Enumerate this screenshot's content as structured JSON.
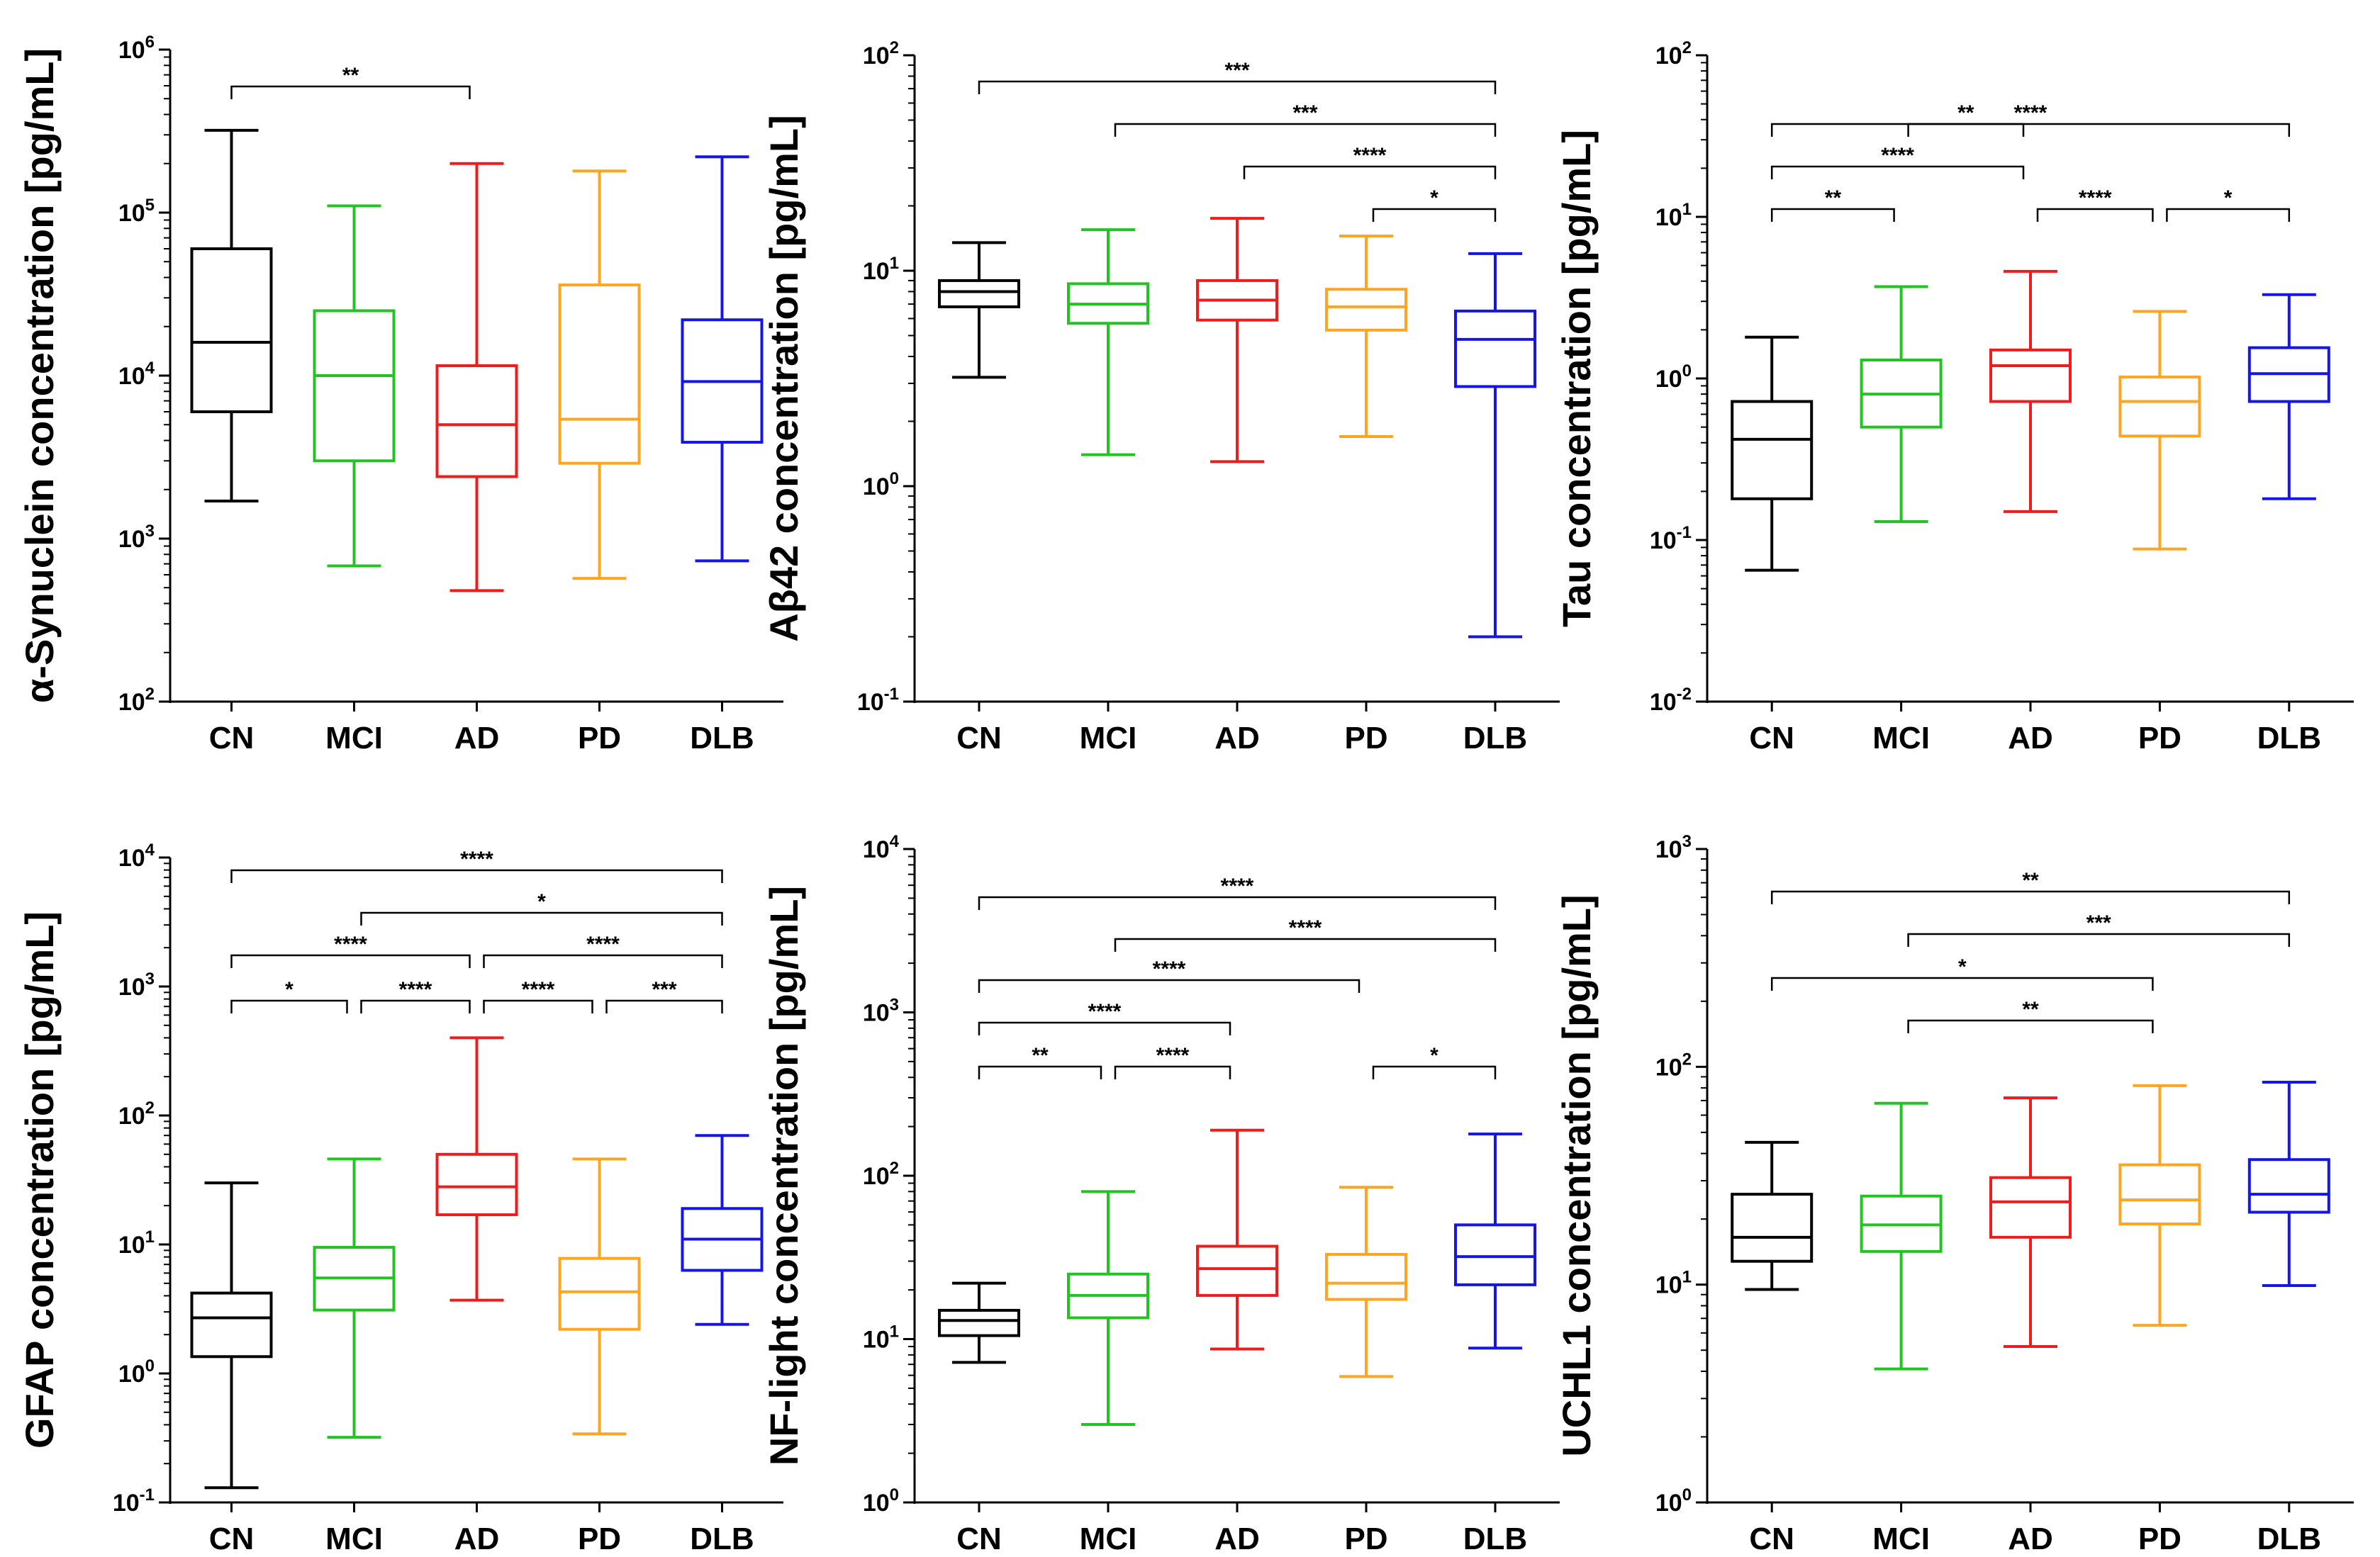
{
  "colors": {
    "CN": "#000000",
    "MCI": "#22c422",
    "AD": "#ee1c1c",
    "PD": "#ffa521",
    "DLB": "#1414ee"
  },
  "chart_data": [
    {
      "type": "box",
      "title": "",
      "xlabel": "",
      "ylabel": "α-Synuclein concentration [pg/mL]",
      "yscale": "log",
      "ylim": [
        100,
        1000000
      ],
      "yticks": [
        {
          "base": "10",
          "exp": "2"
        },
        {
          "base": "10",
          "exp": "3"
        },
        {
          "base": "10",
          "exp": "4"
        },
        {
          "base": "10",
          "exp": "5"
        },
        {
          "base": "10",
          "exp": "6"
        }
      ],
      "categories": [
        "CN",
        "MCI",
        "AD",
        "PD",
        "DLB"
      ],
      "series": [
        {
          "name": "CN",
          "min": 1700,
          "q1": 6000,
          "median": 16000,
          "q3": 60000,
          "max": 320000
        },
        {
          "name": "MCI",
          "min": 680,
          "q1": 3000,
          "median": 10000,
          "q3": 25000,
          "max": 110000
        },
        {
          "name": "AD",
          "min": 480,
          "q1": 2400,
          "median": 5000,
          "q3": 11500,
          "max": 200000
        },
        {
          "name": "PD",
          "min": 570,
          "q1": 2900,
          "median": 5400,
          "q3": 36000,
          "max": 180000
        },
        {
          "name": "DLB",
          "min": 730,
          "q1": 3900,
          "median": 9200,
          "q3": 22000,
          "max": 220000
        }
      ],
      "annotations": [
        {
          "from": "CN",
          "to": "AD",
          "label": "**"
        }
      ]
    },
    {
      "type": "box",
      "title": "",
      "xlabel": "",
      "ylabel": "Aβ42 concentration [pg/mL]",
      "yscale": "log",
      "ylim": [
        0.1,
        100
      ],
      "yticks": [
        {
          "base": "10",
          "exp": "-1"
        },
        {
          "base": "10",
          "exp": "0"
        },
        {
          "base": "10",
          "exp": "1"
        },
        {
          "base": "10",
          "exp": "2"
        }
      ],
      "categories": [
        "CN",
        "MCI",
        "AD",
        "PD",
        "DLB"
      ],
      "series": [
        {
          "name": "CN",
          "min": 3.2,
          "q1": 6.8,
          "median": 8.0,
          "q3": 9.0,
          "max": 13.5
        },
        {
          "name": "MCI",
          "min": 1.4,
          "q1": 5.7,
          "median": 7.0,
          "q3": 8.7,
          "max": 15.5
        },
        {
          "name": "AD",
          "min": 1.3,
          "q1": 5.9,
          "median": 7.3,
          "q3": 9.0,
          "max": 17.5
        },
        {
          "name": "PD",
          "min": 1.7,
          "q1": 5.3,
          "median": 6.8,
          "q3": 8.2,
          "max": 14.5
        },
        {
          "name": "DLB",
          "min": 0.2,
          "q1": 2.9,
          "median": 4.8,
          "q3": 6.5,
          "max": 12.0
        }
      ],
      "annotations": [
        {
          "from": "CN",
          "to": "DLB",
          "label": "***"
        },
        {
          "from": "MCI",
          "to": "DLB",
          "label": "***"
        },
        {
          "from": "AD",
          "to": "DLB",
          "label": "****"
        },
        {
          "from": "PD",
          "to": "DLB",
          "label": "*"
        }
      ]
    },
    {
      "type": "box",
      "title": "",
      "xlabel": "",
      "ylabel": "Tau concentration [pg/mL]",
      "yscale": "log",
      "ylim": [
        0.01,
        100
      ],
      "yticks": [
        {
          "base": "10",
          "exp": "-2"
        },
        {
          "base": "10",
          "exp": "-1"
        },
        {
          "base": "10",
          "exp": "0"
        },
        {
          "base": "10",
          "exp": "1"
        },
        {
          "base": "10",
          "exp": "2"
        }
      ],
      "categories": [
        "CN",
        "MCI",
        "AD",
        "PD",
        "DLB"
      ],
      "series": [
        {
          "name": "CN",
          "min": 0.065,
          "q1": 0.18,
          "median": 0.42,
          "q3": 0.72,
          "max": 1.8
        },
        {
          "name": "MCI",
          "min": 0.13,
          "q1": 0.5,
          "median": 0.8,
          "q3": 1.3,
          "max": 3.7
        },
        {
          "name": "AD",
          "min": 0.15,
          "q1": 0.72,
          "median": 1.2,
          "q3": 1.5,
          "max": 4.6
        },
        {
          "name": "PD",
          "min": 0.088,
          "q1": 0.44,
          "median": 0.72,
          "q3": 1.02,
          "max": 2.6
        },
        {
          "name": "DLB",
          "min": 0.18,
          "q1": 0.72,
          "median": 1.07,
          "q3": 1.55,
          "max": 3.3
        }
      ],
      "annotations": [
        {
          "from": "CN",
          "to": "DLB",
          "label": "****"
        },
        {
          "from": "CN",
          "to": "AD",
          "label": "****"
        },
        {
          "from": "CN",
          "to": "MCI",
          "label": "**"
        },
        {
          "from": "MCI",
          "to": "AD",
          "label": "**"
        },
        {
          "from": "AD",
          "to": "PD",
          "label": "****"
        },
        {
          "from": "PD",
          "to": "DLB",
          "label": "*"
        }
      ]
    },
    {
      "type": "box",
      "title": "",
      "xlabel": "",
      "ylabel": "GFAP concentration [pg/mL]",
      "yscale": "log",
      "ylim": [
        0.1,
        10000
      ],
      "yticks": [
        {
          "base": "10",
          "exp": "-1"
        },
        {
          "base": "10",
          "exp": "0"
        },
        {
          "base": "10",
          "exp": "1"
        },
        {
          "base": "10",
          "exp": "2"
        },
        {
          "base": "10",
          "exp": "3"
        },
        {
          "base": "10",
          "exp": "4"
        }
      ],
      "categories": [
        "CN",
        "MCI",
        "AD",
        "PD",
        "DLB"
      ],
      "series": [
        {
          "name": "CN",
          "min": 0.13,
          "q1": 1.35,
          "median": 2.7,
          "q3": 4.2,
          "max": 30
        },
        {
          "name": "MCI",
          "min": 0.32,
          "q1": 3.1,
          "median": 5.5,
          "q3": 9.5,
          "max": 46
        },
        {
          "name": "AD",
          "min": 3.7,
          "q1": 17,
          "median": 28,
          "q3": 50,
          "max": 400
        },
        {
          "name": "PD",
          "min": 0.34,
          "q1": 2.2,
          "median": 4.3,
          "q3": 7.8,
          "max": 46
        },
        {
          "name": "DLB",
          "min": 2.4,
          "q1": 6.3,
          "median": 11,
          "q3": 19,
          "max": 70
        }
      ],
      "annotations": [
        {
          "from": "CN",
          "to": "DLB",
          "label": "****"
        },
        {
          "from": "MCI",
          "to": "DLB",
          "label": "*"
        },
        {
          "from": "CN",
          "to": "AD",
          "label": "****"
        },
        {
          "from": "AD",
          "to": "DLB",
          "label": "****"
        },
        {
          "from": "CN",
          "to": "MCI",
          "label": "*"
        },
        {
          "from": "MCI",
          "to": "AD",
          "label": "****"
        },
        {
          "from": "AD",
          "to": "PD",
          "label": "****"
        },
        {
          "from": "PD",
          "to": "DLB",
          "label": "***"
        }
      ]
    },
    {
      "type": "box",
      "title": "",
      "xlabel": "",
      "ylabel": "NF-light concentration [pg/mL]",
      "yscale": "log",
      "ylim": [
        1,
        10000
      ],
      "yticks": [
        {
          "base": "10",
          "exp": "0"
        },
        {
          "base": "10",
          "exp": "1"
        },
        {
          "base": "10",
          "exp": "2"
        },
        {
          "base": "10",
          "exp": "3"
        },
        {
          "base": "10",
          "exp": "4"
        }
      ],
      "categories": [
        "CN",
        "MCI",
        "AD",
        "PD",
        "DLB"
      ],
      "series": [
        {
          "name": "CN",
          "min": 7.2,
          "q1": 10.5,
          "median": 13,
          "q3": 15,
          "max": 22
        },
        {
          "name": "MCI",
          "min": 3.0,
          "q1": 13.5,
          "median": 18.5,
          "q3": 25,
          "max": 80
        },
        {
          "name": "AD",
          "min": 8.7,
          "q1": 18.5,
          "median": 27,
          "q3": 37,
          "max": 190
        },
        {
          "name": "PD",
          "min": 5.9,
          "q1": 17.5,
          "median": 22,
          "q3": 33,
          "max": 85
        },
        {
          "name": "DLB",
          "min": 8.8,
          "q1": 21.5,
          "median": 32,
          "q3": 50,
          "max": 180
        }
      ],
      "annotations": [
        {
          "from": "CN",
          "to": "DLB",
          "label": "****"
        },
        {
          "from": "MCI",
          "to": "DLB",
          "label": "****"
        },
        {
          "from": "CN",
          "to": "PD",
          "label": "****"
        },
        {
          "from": "CN",
          "to": "AD",
          "label": "****"
        },
        {
          "from": "CN",
          "to": "MCI",
          "label": "**"
        },
        {
          "from": "MCI",
          "to": "AD",
          "label": "****"
        },
        {
          "from": "PD",
          "to": "DLB",
          "label": "*"
        }
      ]
    },
    {
      "type": "box",
      "title": "",
      "xlabel": "",
      "ylabel": "UCHL1 concentration [pg/mL]",
      "yscale": "log",
      "ylim": [
        1,
        1000
      ],
      "yticks": [
        {
          "base": "10",
          "exp": "0"
        },
        {
          "base": "10",
          "exp": "1"
        },
        {
          "base": "10",
          "exp": "2"
        },
        {
          "base": "10",
          "exp": "3"
        }
      ],
      "categories": [
        "CN",
        "MCI",
        "AD",
        "PD",
        "DLB"
      ],
      "series": [
        {
          "name": "CN",
          "min": 9.5,
          "q1": 12.8,
          "median": 16.5,
          "q3": 26,
          "max": 45
        },
        {
          "name": "MCI",
          "min": 4.1,
          "q1": 14.2,
          "median": 18.8,
          "q3": 25.5,
          "max": 68
        },
        {
          "name": "AD",
          "min": 5.2,
          "q1": 16.5,
          "median": 24,
          "q3": 31,
          "max": 72
        },
        {
          "name": "PD",
          "min": 6.5,
          "q1": 19,
          "median": 24.5,
          "q3": 35.5,
          "max": 82
        },
        {
          "name": "DLB",
          "min": 9.9,
          "q1": 21.5,
          "median": 26,
          "q3": 37.5,
          "max": 85
        }
      ],
      "annotations": [
        {
          "from": "CN",
          "to": "DLB",
          "label": "**"
        },
        {
          "from": "MCI",
          "to": "DLB",
          "label": "***"
        },
        {
          "from": "CN",
          "to": "PD",
          "label": "*"
        },
        {
          "from": "MCI",
          "to": "PD",
          "label": "**"
        }
      ]
    }
  ]
}
